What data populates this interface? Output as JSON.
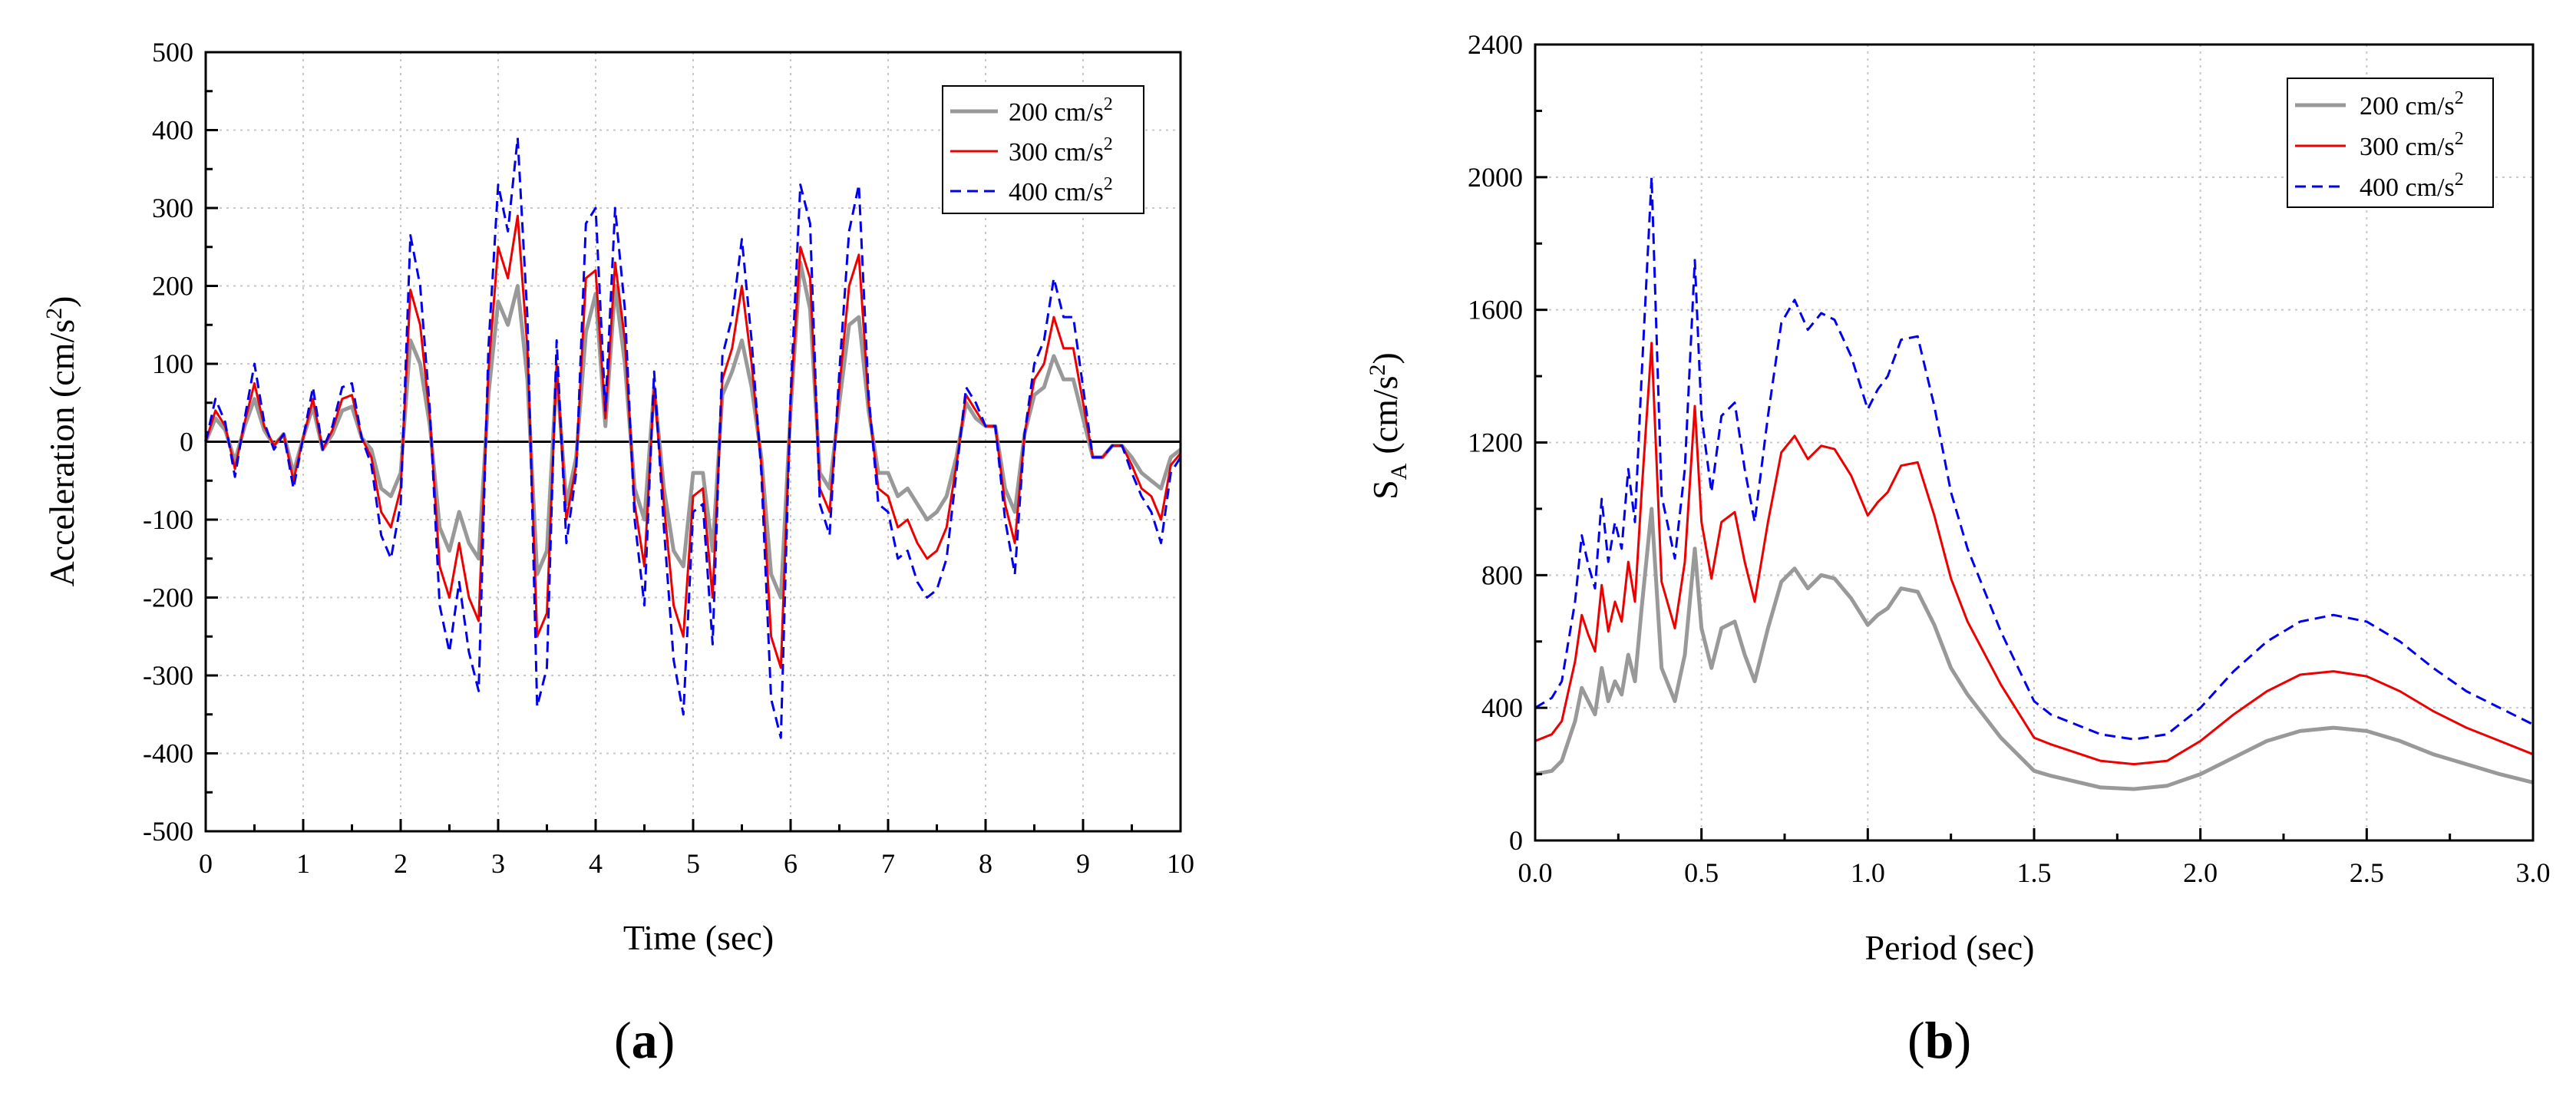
{
  "figure": {
    "label_a": "a",
    "label_b": "b",
    "paren_open": "(",
    "paren_close": ")"
  },
  "colors": {
    "s200": "#999999",
    "s300": "#ee0000",
    "s400": "#0000ee"
  },
  "chart_data": [
    {
      "id": "a",
      "type": "line",
      "title": "",
      "xlabel": "Time (sec)",
      "ylabel_main": "Acceleration (cm/s",
      "ylabel_sup": "2",
      "ylabel_end": ")",
      "xlim": [
        0,
        10
      ],
      "ylim": [
        -500,
        500
      ],
      "xticks": [
        0,
        1,
        2,
        3,
        4,
        5,
        6,
        7,
        8,
        9,
        10
      ],
      "yticks": [
        -500,
        -400,
        -300,
        -200,
        -100,
        0,
        100,
        200,
        300,
        400,
        500
      ],
      "zero_line": true,
      "grid": true,
      "legend_position": "top-right",
      "series": [
        {
          "name": "200 cm/s",
          "sup": "2",
          "style": "solid",
          "color_key": "s200",
          "x": [
            0,
            0.1,
            0.2,
            0.3,
            0.4,
            0.5,
            0.6,
            0.7,
            0.8,
            0.9,
            1.0,
            1.1,
            1.2,
            1.3,
            1.4,
            1.5,
            1.6,
            1.7,
            1.8,
            1.9,
            2.0,
            2.1,
            2.2,
            2.3,
            2.4,
            2.5,
            2.6,
            2.7,
            2.8,
            2.9,
            3.0,
            3.1,
            3.2,
            3.3,
            3.4,
            3.5,
            3.6,
            3.7,
            3.8,
            3.9,
            4.0,
            4.1,
            4.2,
            4.3,
            4.4,
            4.5,
            4.6,
            4.7,
            4.8,
            4.9,
            5.0,
            5.1,
            5.2,
            5.3,
            5.4,
            5.5,
            5.6,
            5.7,
            5.8,
            5.9,
            6.0,
            6.1,
            6.2,
            6.3,
            6.4,
            6.5,
            6.6,
            6.7,
            6.8,
            6.9,
            7.0,
            7.1,
            7.2,
            7.3,
            7.4,
            7.5,
            7.6,
            7.7,
            7.8,
            7.9,
            8.0,
            8.1,
            8.2,
            8.3,
            8.4,
            8.5,
            8.6,
            8.7,
            8.8,
            8.9,
            9.0,
            9.1,
            9.2,
            9.3,
            9.4,
            9.5,
            9.6,
            9.7,
            9.8,
            9.9,
            10.0
          ],
          "y": [
            0,
            30,
            15,
            -25,
            20,
            55,
            15,
            -5,
            10,
            -40,
            5,
            45,
            -10,
            10,
            40,
            45,
            5,
            -10,
            -60,
            -70,
            -40,
            130,
            100,
            20,
            -110,
            -140,
            -90,
            -130,
            -150,
            60,
            180,
            150,
            200,
            80,
            -170,
            -140,
            90,
            -80,
            -20,
            140,
            190,
            20,
            200,
            100,
            -60,
            -100,
            70,
            -60,
            -140,
            -160,
            -40,
            -40,
            -140,
            60,
            90,
            130,
            70,
            -20,
            -170,
            -200,
            40,
            230,
            170,
            -40,
            -60,
            50,
            150,
            160,
            40,
            -40,
            -40,
            -70,
            -60,
            -80,
            -100,
            -90,
            -70,
            -20,
            50,
            30,
            20,
            20,
            -60,
            -90,
            10,
            60,
            70,
            110,
            80,
            80,
            30,
            -20,
            -20,
            -5,
            -5,
            -20,
            -40,
            -50,
            -60,
            -20,
            -10
          ]
        },
        {
          "name": "300 cm/s",
          "sup": "2",
          "style": "solid",
          "color_key": "s300",
          "x": [
            0,
            0.1,
            0.2,
            0.3,
            0.4,
            0.5,
            0.6,
            0.7,
            0.8,
            0.9,
            1.0,
            1.1,
            1.2,
            1.3,
            1.4,
            1.5,
            1.6,
            1.7,
            1.8,
            1.9,
            2.0,
            2.1,
            2.2,
            2.3,
            2.4,
            2.5,
            2.6,
            2.7,
            2.8,
            2.9,
            3.0,
            3.1,
            3.2,
            3.3,
            3.4,
            3.5,
            3.6,
            3.7,
            3.8,
            3.9,
            4.0,
            4.1,
            4.2,
            4.3,
            4.4,
            4.5,
            4.6,
            4.7,
            4.8,
            4.9,
            5.0,
            5.1,
            5.2,
            5.3,
            5.4,
            5.5,
            5.6,
            5.7,
            5.8,
            5.9,
            6.0,
            6.1,
            6.2,
            6.3,
            6.4,
            6.5,
            6.6,
            6.7,
            6.8,
            6.9,
            7.0,
            7.1,
            7.2,
            7.3,
            7.4,
            7.5,
            7.6,
            7.7,
            7.8,
            7.9,
            8.0,
            8.1,
            8.2,
            8.3,
            8.4,
            8.5,
            8.6,
            8.7,
            8.8,
            8.9,
            9.0,
            9.1,
            9.2,
            9.3,
            9.4,
            9.5,
            9.6,
            9.7,
            9.8,
            9.9,
            10.0
          ],
          "y": [
            0,
            40,
            20,
            -35,
            25,
            75,
            20,
            -5,
            10,
            -50,
            5,
            55,
            -10,
            15,
            55,
            60,
            5,
            -20,
            -90,
            -110,
            -60,
            195,
            150,
            30,
            -160,
            -200,
            -130,
            -200,
            -230,
            90,
            250,
            210,
            290,
            120,
            -250,
            -220,
            100,
            -100,
            -30,
            210,
            220,
            30,
            230,
            130,
            -80,
            -160,
            70,
            -80,
            -210,
            -250,
            -70,
            -60,
            -200,
            80,
            120,
            200,
            100,
            -30,
            -250,
            -290,
            50,
            250,
            210,
            -60,
            -90,
            70,
            200,
            240,
            50,
            -60,
            -70,
            -110,
            -100,
            -130,
            -150,
            -140,
            -110,
            -30,
            60,
            40,
            20,
            20,
            -80,
            -130,
            10,
            80,
            100,
            160,
            120,
            120,
            50,
            -20,
            -20,
            -5,
            -5,
            -30,
            -60,
            -70,
            -100,
            -30,
            -15
          ]
        },
        {
          "name": "400 cm/s",
          "sup": "2",
          "style": "dashed",
          "color_key": "s400",
          "x": [
            0,
            0.1,
            0.2,
            0.3,
            0.4,
            0.5,
            0.6,
            0.7,
            0.8,
            0.9,
            1.0,
            1.1,
            1.2,
            1.3,
            1.4,
            1.5,
            1.6,
            1.7,
            1.8,
            1.9,
            2.0,
            2.1,
            2.2,
            2.3,
            2.4,
            2.5,
            2.6,
            2.7,
            2.8,
            2.9,
            3.0,
            3.1,
            3.2,
            3.3,
            3.4,
            3.5,
            3.6,
            3.7,
            3.8,
            3.9,
            4.0,
            4.1,
            4.2,
            4.3,
            4.4,
            4.5,
            4.6,
            4.7,
            4.8,
            4.9,
            5.0,
            5.1,
            5.2,
            5.3,
            5.4,
            5.5,
            5.6,
            5.7,
            5.8,
            5.9,
            6.0,
            6.1,
            6.2,
            6.3,
            6.4,
            6.5,
            6.6,
            6.7,
            6.8,
            6.9,
            7.0,
            7.1,
            7.2,
            7.3,
            7.4,
            7.5,
            7.6,
            7.7,
            7.8,
            7.9,
            8.0,
            8.1,
            8.2,
            8.3,
            8.4,
            8.5,
            8.6,
            8.7,
            8.8,
            8.9,
            9.0,
            9.1,
            9.2,
            9.3,
            9.4,
            9.5,
            9.6,
            9.7,
            9.8,
            9.9,
            10.0
          ],
          "y": [
            0,
            55,
            25,
            -45,
            30,
            100,
            25,
            -10,
            10,
            -60,
            5,
            70,
            -10,
            20,
            70,
            75,
            5,
            -30,
            -120,
            -150,
            -80,
            265,
            200,
            40,
            -210,
            -270,
            -180,
            -270,
            -320,
            120,
            330,
            270,
            390,
            160,
            -340,
            -290,
            130,
            -130,
            -40,
            280,
            300,
            40,
            300,
            170,
            -100,
            -210,
            90,
            -110,
            -280,
            -350,
            -90,
            -80,
            -260,
            110,
            160,
            260,
            130,
            -40,
            -330,
            -380,
            60,
            330,
            280,
            -80,
            -120,
            90,
            270,
            330,
            60,
            -80,
            -90,
            -150,
            -140,
            -180,
            -200,
            -190,
            -150,
            -40,
            70,
            50,
            20,
            20,
            -100,
            -170,
            10,
            100,
            130,
            210,
            160,
            160,
            70,
            -20,
            -20,
            -5,
            -5,
            -40,
            -70,
            -90,
            -130,
            -40,
            -20
          ]
        }
      ]
    },
    {
      "id": "b",
      "type": "line",
      "title": "",
      "xlabel": "Period (sec)",
      "ylabel_main": "S",
      "ylabel_sub": "A",
      "ylabel_units": "(cm/s",
      "ylabel_sup": "2",
      "ylabel_end": ")",
      "xlim": [
        0,
        3
      ],
      "ylim": [
        0,
        2400
      ],
      "xticks": [
        0.0,
        0.5,
        1.0,
        1.5,
        2.0,
        2.5,
        3.0
      ],
      "xtick_labels": [
        "0.0",
        "0.5",
        "1.0",
        "1.5",
        "2.0",
        "2.5",
        "3.0"
      ],
      "yticks": [
        0,
        400,
        800,
        1200,
        1600,
        2000,
        2400
      ],
      "grid": true,
      "legend_position": "top-right",
      "series": [
        {
          "name": "200 cm/s",
          "sup": "2",
          "style": "solid",
          "color_key": "s200",
          "x": [
            0,
            0.05,
            0.08,
            0.1,
            0.12,
            0.14,
            0.16,
            0.18,
            0.2,
            0.22,
            0.24,
            0.26,
            0.28,
            0.3,
            0.32,
            0.35,
            0.38,
            0.42,
            0.45,
            0.48,
            0.5,
            0.53,
            0.56,
            0.6,
            0.63,
            0.66,
            0.7,
            0.74,
            0.78,
            0.82,
            0.86,
            0.9,
            0.95,
            1.0,
            1.03,
            1.06,
            1.1,
            1.15,
            1.2,
            1.25,
            1.3,
            1.4,
            1.5,
            1.55,
            1.7,
            1.8,
            1.9,
            2.0,
            2.1,
            2.2,
            2.3,
            2.4,
            2.5,
            2.6,
            2.7,
            2.8,
            2.9,
            3.0
          ],
          "y": [
            200,
            210,
            240,
            300,
            360,
            460,
            420,
            380,
            520,
            420,
            480,
            440,
            560,
            480,
            700,
            1000,
            520,
            420,
            560,
            880,
            640,
            520,
            640,
            660,
            560,
            480,
            640,
            780,
            820,
            760,
            800,
            790,
            730,
            650,
            680,
            700,
            760,
            750,
            650,
            520,
            440,
            310,
            210,
            195,
            160,
            155,
            165,
            200,
            250,
            300,
            330,
            340,
            330,
            300,
            260,
            230,
            200,
            175
          ]
        },
        {
          "name": "300 cm/s",
          "sup": "2",
          "style": "solid",
          "color_key": "s300",
          "x": [
            0,
            0.05,
            0.08,
            0.1,
            0.12,
            0.14,
            0.16,
            0.18,
            0.2,
            0.22,
            0.24,
            0.26,
            0.28,
            0.3,
            0.32,
            0.35,
            0.38,
            0.42,
            0.45,
            0.48,
            0.5,
            0.53,
            0.56,
            0.6,
            0.63,
            0.66,
            0.7,
            0.74,
            0.78,
            0.82,
            0.86,
            0.9,
            0.95,
            1.0,
            1.03,
            1.06,
            1.1,
            1.15,
            1.2,
            1.25,
            1.3,
            1.4,
            1.5,
            1.55,
            1.7,
            1.8,
            1.9,
            2.0,
            2.1,
            2.2,
            2.3,
            2.4,
            2.5,
            2.6,
            2.7,
            2.8,
            2.9,
            3.0
          ],
          "y": [
            300,
            320,
            360,
            450,
            540,
            680,
            620,
            570,
            770,
            630,
            720,
            660,
            840,
            720,
            1050,
            1500,
            780,
            640,
            840,
            1310,
            960,
            790,
            960,
            990,
            840,
            720,
            960,
            1170,
            1220,
            1150,
            1190,
            1180,
            1100,
            980,
            1020,
            1050,
            1130,
            1140,
            980,
            790,
            660,
            470,
            310,
            290,
            240,
            230,
            240,
            300,
            380,
            450,
            500,
            510,
            495,
            450,
            390,
            340,
            300,
            260
          ]
        },
        {
          "name": "400 cm/s",
          "sup": "2",
          "style": "dashed",
          "color_key": "s400",
          "x": [
            0,
            0.05,
            0.08,
            0.1,
            0.12,
            0.14,
            0.16,
            0.18,
            0.2,
            0.22,
            0.24,
            0.26,
            0.28,
            0.3,
            0.32,
            0.35,
            0.38,
            0.42,
            0.45,
            0.48,
            0.5,
            0.53,
            0.56,
            0.6,
            0.63,
            0.66,
            0.7,
            0.74,
            0.78,
            0.82,
            0.86,
            0.9,
            0.95,
            1.0,
            1.03,
            1.06,
            1.1,
            1.15,
            1.2,
            1.25,
            1.3,
            1.4,
            1.5,
            1.55,
            1.7,
            1.8,
            1.9,
            2.0,
            2.1,
            2.2,
            2.3,
            2.4,
            2.5,
            2.6,
            2.7,
            2.8,
            2.9,
            3.0
          ],
          "y": [
            400,
            430,
            480,
            600,
            720,
            920,
            830,
            760,
            1030,
            840,
            960,
            880,
            1120,
            960,
            1400,
            2000,
            1040,
            850,
            1120,
            1750,
            1280,
            1050,
            1280,
            1320,
            1120,
            960,
            1280,
            1560,
            1630,
            1540,
            1590,
            1570,
            1460,
            1300,
            1360,
            1400,
            1510,
            1520,
            1310,
            1050,
            880,
            630,
            420,
            380,
            320,
            305,
            320,
            400,
            510,
            600,
            660,
            680,
            660,
            600,
            520,
            450,
            400,
            350
          ]
        }
      ]
    }
  ]
}
